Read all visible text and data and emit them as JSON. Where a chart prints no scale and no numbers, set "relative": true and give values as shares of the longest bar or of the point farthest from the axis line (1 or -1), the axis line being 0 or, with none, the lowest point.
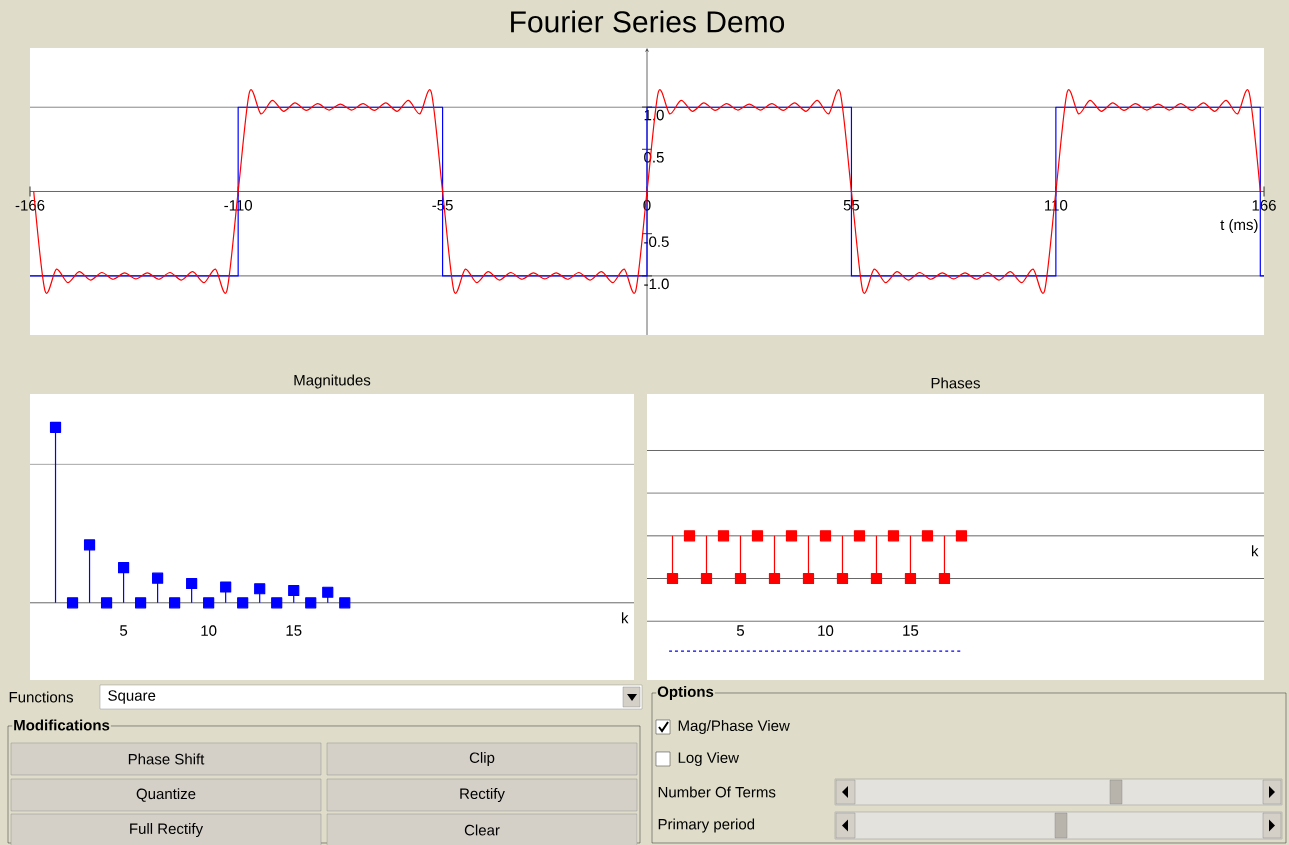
{
  "chart_data": [
    {
      "type": "line",
      "title": "Fourier Series Demo",
      "xlabel": "t (ms)",
      "xlim": [
        -166,
        166
      ],
      "ylim": [
        -1.7,
        1.7
      ],
      "xticks": [
        -166,
        -110,
        -55,
        0,
        55,
        110,
        166
      ],
      "yticks": [
        {
          "value": -1,
          "label": "-1.0"
        },
        {
          "value": -0.5,
          "label": "-0.5"
        },
        {
          "value": 0.5,
          "label": "0.5"
        },
        {
          "value": 1,
          "label": "1.0"
        }
      ],
      "ref_lines": [
        {
          "axis": "y",
          "value": 1,
          "color": "#404040"
        },
        {
          "axis": "y",
          "value": -1,
          "color": "#404040"
        }
      ],
      "series": [
        {
          "type": "step",
          "color": "#0000ff",
          "x": [
            -166,
            -110,
            -55,
            0,
            55,
            110,
            165,
            166
          ],
          "values": [
            -1,
            1,
            -1,
            1,
            -1,
            1,
            -1,
            -1
          ]
        },
        {
          "type": "line",
          "color": "#ff0000",
          "x": [
            -165,
            -161.94,
            -158.89,
            -155.83,
            -152.78,
            -149.72,
            -146.67,
            -143.61,
            -140.56,
            -137.5,
            -134.44,
            -131.39,
            -128.33,
            -125.28,
            -122.22,
            -119.17,
            -116.11,
            -113.06,
            -110,
            -106.94,
            -103.89,
            -100.83,
            -97.78,
            -94.72,
            -91.67,
            -88.61,
            -85.56,
            -82.5,
            -79.44,
            -76.39,
            -73.33,
            -70.28,
            -67.22,
            -64.17,
            -61.11,
            -58.06,
            -55,
            -51.94,
            -48.89,
            -45.83,
            -42.78,
            -39.72,
            -36.67,
            -33.61,
            -30.56,
            -27.5,
            -24.44,
            -21.39,
            -18.33,
            -15.28,
            -12.22,
            -9.17,
            -6.11,
            -3.06,
            0,
            3.06,
            6.11,
            9.17,
            12.22,
            15.28,
            18.33,
            21.39,
            24.44,
            27.5,
            30.56,
            33.61,
            36.67,
            39.72,
            42.78,
            45.83,
            48.89,
            51.94,
            55,
            58.06,
            61.11,
            64.17,
            67.22,
            70.28,
            73.33,
            76.39,
            79.44,
            82.5,
            85.56,
            88.61,
            91.67,
            94.72,
            97.78,
            100.83,
            103.89,
            106.94,
            110,
            113.06,
            116.11,
            119.17,
            122.22,
            125.28,
            128.33,
            131.39,
            134.44,
            137.5,
            140.56,
            143.61,
            146.67,
            149.72,
            152.78,
            155.83,
            158.89,
            161.94,
            165
          ],
          "values": [
            0,
            -1.18,
            -0.92,
            -1.08,
            -0.95,
            -1.05,
            -0.96,
            -1.04,
            -0.965,
            -1.035,
            -0.965,
            -1.04,
            -0.96,
            -1.05,
            -0.95,
            -1.08,
            -0.92,
            -1.18,
            0,
            1.18,
            0.92,
            1.08,
            0.95,
            1.05,
            0.96,
            1.04,
            0.965,
            1.035,
            0.965,
            1.04,
            0.96,
            1.05,
            0.95,
            1.08,
            0.92,
            1.18,
            0,
            -1.18,
            -0.92,
            -1.08,
            -0.95,
            -1.05,
            -0.96,
            -1.04,
            -0.965,
            -1.035,
            -0.965,
            -1.04,
            -0.96,
            -1.05,
            -0.95,
            -1.08,
            -0.92,
            -1.18,
            0,
            1.18,
            0.92,
            1.08,
            0.95,
            1.05,
            0.96,
            1.04,
            0.965,
            1.035,
            0.965,
            1.04,
            0.96,
            1.05,
            0.95,
            1.08,
            0.92,
            1.18,
            0,
            -1.18,
            -0.92,
            -1.08,
            -0.95,
            -1.05,
            -0.96,
            -1.04,
            -0.965,
            -1.035,
            -0.965,
            -1.04,
            -0.96,
            -1.05,
            -0.95,
            -1.08,
            -0.92,
            -1.18,
            0,
            1.18,
            0.92,
            1.08,
            0.95,
            1.05,
            0.96,
            1.04,
            0.965,
            1.035,
            0.965,
            1.04,
            0.96,
            1.05,
            0.95,
            1.08,
            0.92,
            1.18,
            0
          ]
        }
      ]
    },
    {
      "type": "lollipop",
      "title": "Magnitudes",
      "xlabel": "k",
      "relative": true,
      "tick_labels": "x",
      "marker": "square",
      "xlim": [
        -0.5,
        35
      ],
      "xticks": [
        5,
        10,
        15
      ],
      "x": [
        1,
        2,
        3,
        4,
        5,
        6,
        7,
        8,
        9,
        10,
        11,
        12,
        13,
        14,
        15,
        16,
        17,
        18
      ],
      "ref_lines": [
        {
          "axis": "y",
          "value": 0.79,
          "color": "#404040"
        }
      ],
      "series": [
        {
          "color": "#0000ff",
          "values": [
            1,
            0,
            0.33,
            0,
            0.2,
            0,
            0.14,
            0,
            0.11,
            0,
            0.09,
            0,
            0.08,
            0,
            0.07,
            0,
            0.06,
            0
          ]
        }
      ]
    },
    {
      "type": "lollipop",
      "title": "Phases",
      "xlabel": "k",
      "relative": true,
      "tick_labels": "x",
      "marker": "square",
      "xlim": [
        -0.5,
        35.8
      ],
      "xticks": [
        5,
        10,
        15
      ],
      "x": [
        1,
        2,
        3,
        4,
        5,
        6,
        7,
        8,
        9,
        10,
        11,
        12,
        13,
        14,
        15,
        16,
        17,
        18
      ],
      "ref_lines": [
        {
          "axis": "y",
          "value": 0.74,
          "color": "#404040"
        },
        {
          "axis": "y",
          "value": 0.37,
          "color": "#404040"
        },
        {
          "axis": "y",
          "value": -0.37,
          "color": "#404040"
        },
        {
          "axis": "y",
          "value": -0.74,
          "color": "#404040"
        }
      ],
      "series": [
        {
          "color": "#ff0000",
          "values": [
            -0.37,
            0,
            -0.37,
            0,
            -0.37,
            0,
            -0.37,
            0,
            -0.37,
            0,
            -0.37,
            0,
            -0.37,
            0,
            -0.37,
            0,
            -0.37,
            0
          ]
        },
        {
          "type": "line",
          "color": "#0000ff",
          "marker": "none",
          "line_style": "dashed",
          "x": [
            0.8,
            18
          ],
          "values": [
            -1,
            -1
          ]
        }
      ]
    },
    {
      "type": "other",
      "annotations": [
        "Functions",
        "Square",
        "Modifications",
        "Phase Shift",
        "Clip",
        "Quantize",
        "Rectify",
        "Full Rectify",
        "Clear",
        "Options",
        "Mag/Phase View",
        "Log View",
        "Number Of Terms",
        "Primary period"
      ]
    }
  ]
}
